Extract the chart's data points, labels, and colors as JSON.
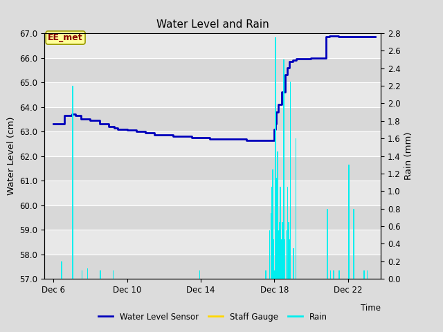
{
  "title": "Water Level and Rain",
  "xlabel": "Time",
  "ylabel_left": "Water Level (cm)",
  "ylabel_right": "Rain (mm)",
  "ylim_left": [
    57.0,
    67.0
  ],
  "ylim_right": [
    0.0,
    2.8
  ],
  "yticks_left": [
    57.0,
    58.0,
    59.0,
    60.0,
    61.0,
    62.0,
    63.0,
    64.0,
    65.0,
    66.0,
    67.0
  ],
  "yticks_right": [
    0.0,
    0.2,
    0.4,
    0.6,
    0.8,
    1.0,
    1.2,
    1.4,
    1.6,
    1.8,
    2.0,
    2.2,
    2.4,
    2.6,
    2.8
  ],
  "xtick_labels": [
    "Dec 6",
    "Dec 10",
    "Dec 14",
    "Dec 18",
    "Dec 22"
  ],
  "xtick_positions": [
    6,
    10,
    14,
    18,
    22
  ],
  "xlim": [
    5.5,
    23.8
  ],
  "fig_bg_color": "#dcdcdc",
  "band_colors": [
    "#d8d8d8",
    "#e8e8e8"
  ],
  "grid_color": "#ffffff",
  "water_level_color": "#0000BB",
  "rain_color": "#00EEEE",
  "staff_gauge_color": "#FFD700",
  "annotation_text": "EE_met",
  "annotation_bg": "#FFFF99",
  "annotation_border": "#999900",
  "annotation_text_color": "#880000",
  "legend_labels": [
    "Water Level Sensor",
    "Staff Gauge",
    "Rain"
  ],
  "legend_colors": [
    "#0000BB",
    "#FFD700",
    "#00EEEE"
  ],
  "wl_times": [
    6.0,
    6.5,
    6.6,
    7.0,
    7.2,
    7.5,
    8.0,
    8.5,
    9.0,
    9.3,
    9.5,
    10.0,
    10.5,
    11.0,
    11.5,
    12.0,
    12.5,
    13.0,
    13.5,
    14.0,
    14.5,
    15.0,
    15.5,
    16.0,
    16.5,
    17.0,
    17.5,
    17.8,
    18.0,
    18.05,
    18.1,
    18.2,
    18.4,
    18.6,
    18.7,
    18.8,
    19.0,
    19.2,
    19.5,
    19.8,
    20.0,
    20.2,
    20.5,
    20.8,
    21.0,
    21.5,
    22.0,
    22.5,
    23.0,
    23.5
  ],
  "wl_values": [
    63.3,
    63.3,
    63.65,
    63.7,
    63.65,
    63.5,
    63.45,
    63.3,
    63.2,
    63.15,
    63.1,
    63.05,
    63.0,
    62.95,
    62.85,
    62.85,
    62.8,
    62.8,
    62.75,
    62.75,
    62.7,
    62.7,
    62.68,
    62.68,
    62.65,
    62.65,
    62.65,
    62.65,
    63.1,
    63.3,
    63.8,
    64.1,
    64.6,
    65.3,
    65.6,
    65.85,
    65.9,
    65.95,
    65.95,
    65.95,
    66.0,
    66.0,
    66.0,
    66.85,
    66.9,
    66.85,
    66.85,
    66.85,
    66.85,
    66.85
  ],
  "rain_times": [
    6.45,
    7.05,
    7.55,
    7.85,
    8.55,
    9.25,
    13.95,
    17.55,
    17.75,
    17.82,
    17.88,
    17.92,
    17.97,
    18.02,
    18.07,
    18.12,
    18.18,
    18.22,
    18.28,
    18.33,
    18.38,
    18.45,
    18.52,
    18.58,
    18.65,
    18.72,
    18.77,
    18.82,
    18.88,
    19.05,
    19.18,
    20.88,
    21.05,
    21.22,
    21.52,
    22.05,
    22.32,
    22.88,
    23.05
  ],
  "rain_values": [
    0.2,
    2.2,
    0.1,
    0.12,
    0.1,
    0.1,
    0.1,
    0.1,
    0.55,
    0.75,
    1.05,
    1.25,
    0.45,
    0.1,
    2.75,
    1.15,
    1.45,
    0.55,
    0.65,
    1.05,
    0.45,
    0.65,
    2.5,
    0.45,
    0.55,
    1.05,
    0.65,
    0.45,
    2.25,
    0.35,
    1.6,
    0.8,
    0.1,
    0.1,
    0.1,
    1.3,
    0.8,
    0.1,
    0.1
  ],
  "bar_width": 0.06
}
